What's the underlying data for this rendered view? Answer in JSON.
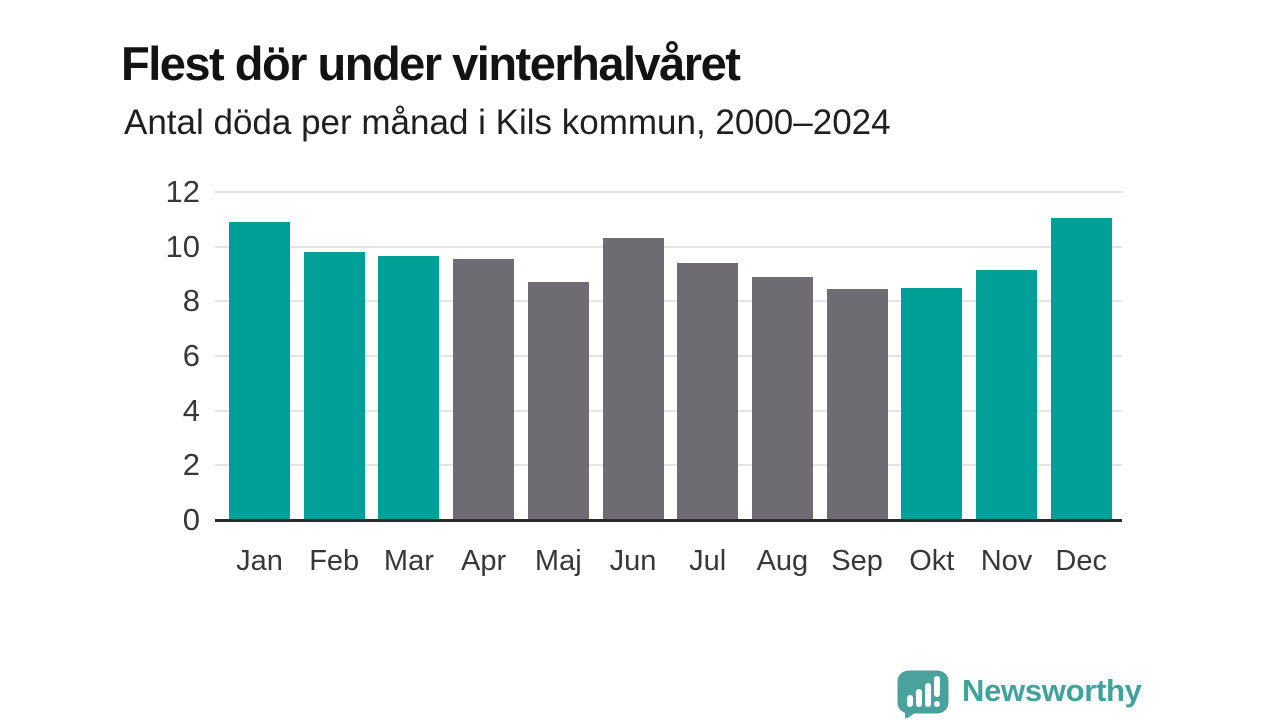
{
  "header": {
    "title": "Flest dör under vinterhalvåret",
    "subtitle": "Antal döda per månad i Kils kommun, 2000–2024"
  },
  "chart_data": {
    "type": "bar",
    "title": "Flest dör under vinterhalvåret",
    "subtitle": "Antal döda per månad i Kils kommun, 2000–2024",
    "categories": [
      "Jan",
      "Feb",
      "Mar",
      "Apr",
      "Maj",
      "Jun",
      "Jul",
      "Aug",
      "Sep",
      "Okt",
      "Nov",
      "Dec"
    ],
    "values": [
      10.9,
      9.8,
      9.65,
      9.55,
      8.7,
      10.3,
      9.4,
      8.9,
      8.45,
      8.5,
      9.15,
      11.05
    ],
    "bar_colors": [
      "#00a099",
      "#00a099",
      "#00a099",
      "#6e6b72",
      "#6e6b72",
      "#6e6b72",
      "#6e6b72",
      "#6e6b72",
      "#6e6b72",
      "#00a099",
      "#00a099",
      "#00a099"
    ],
    "xlabel": "",
    "ylabel": "",
    "ylim": [
      0,
      12
    ],
    "yticks": [
      0,
      2,
      4,
      6,
      8,
      10,
      12
    ],
    "grid": true,
    "legend": "none",
    "colors": {
      "winter_highlight": "#00a099",
      "other_months": "#6e6b72",
      "gridline": "#e4e4e4",
      "axis_line": "#2b2b2b",
      "tick_text": "#383838"
    }
  },
  "footer": {
    "brand": "Newsworthy",
    "brand_color": "#42a19b",
    "logo_icon": "bar-chart-speech-bubble-icon"
  }
}
